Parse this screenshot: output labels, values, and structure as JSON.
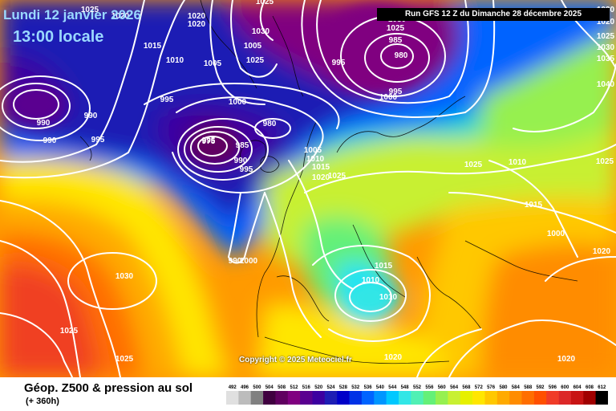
{
  "header": {
    "date_label": "Lundi 12 janvier 2026",
    "time_label": "13:00 locale",
    "run_label": "Run GFS 12 Z du Dimanche 28 décembre 2025"
  },
  "copyright": "Copyright © 2025 Meteociel.fr",
  "legend": {
    "title": "Géop. Z500 & pression au sol",
    "subtitle": "(+ 360h)",
    "levels": [
      "492",
      "496",
      "500",
      "504",
      "508",
      "512",
      "516",
      "520",
      "524",
      "528",
      "532",
      "536",
      "540",
      "544",
      "548",
      "552",
      "556",
      "560",
      "564",
      "568",
      "572",
      "576",
      "580",
      "584",
      "588",
      "592",
      "596",
      "600",
      "604",
      "608",
      "612"
    ],
    "colors": [
      "#e0e0e0",
      "#bcbcbc",
      "#808080",
      "#400040",
      "#600060",
      "#800080",
      "#5a0090",
      "#3c00a0",
      "#1e1eb4",
      "#0000c8",
      "#0032e6",
      "#0064ff",
      "#0096ff",
      "#00c8ff",
      "#32e6e6",
      "#50f0b4",
      "#64f078",
      "#96f050",
      "#c8f032",
      "#e6f000",
      "#ffe600",
      "#ffc800",
      "#ffaa00",
      "#ff8c00",
      "#ff6e00",
      "#ff5000",
      "#f03c28",
      "#dc2828",
      "#c81414",
      "#a00000",
      "#000000"
    ]
  },
  "pressure_labels": [
    "1025",
    "1020",
    "1020",
    "1020",
    "1025",
    "1030",
    "1025",
    "1030",
    "1020",
    "1015",
    "1010",
    "1005",
    "995",
    "990",
    "990",
    "1000",
    "1005",
    "995",
    "1030",
    "1025",
    "985",
    "980",
    "995",
    "1000",
    "1025",
    "1030",
    "1035",
    "1040",
    "1025",
    "1010",
    "1015",
    "1000",
    "1020",
    "990",
    "995",
    "995",
    "980",
    "975",
    "985",
    "990",
    "995",
    "1025",
    "1005",
    "1010",
    "1015",
    "1020",
    "1025",
    "1030",
    "1025",
    "1025",
    "1015",
    "1010",
    "1010",
    "1020",
    "1020",
    "990",
    "1000"
  ],
  "map_layers": {
    "ocean_color": "#3060e0",
    "isobar_color": "#ffffff",
    "coast_color": "#000000"
  }
}
